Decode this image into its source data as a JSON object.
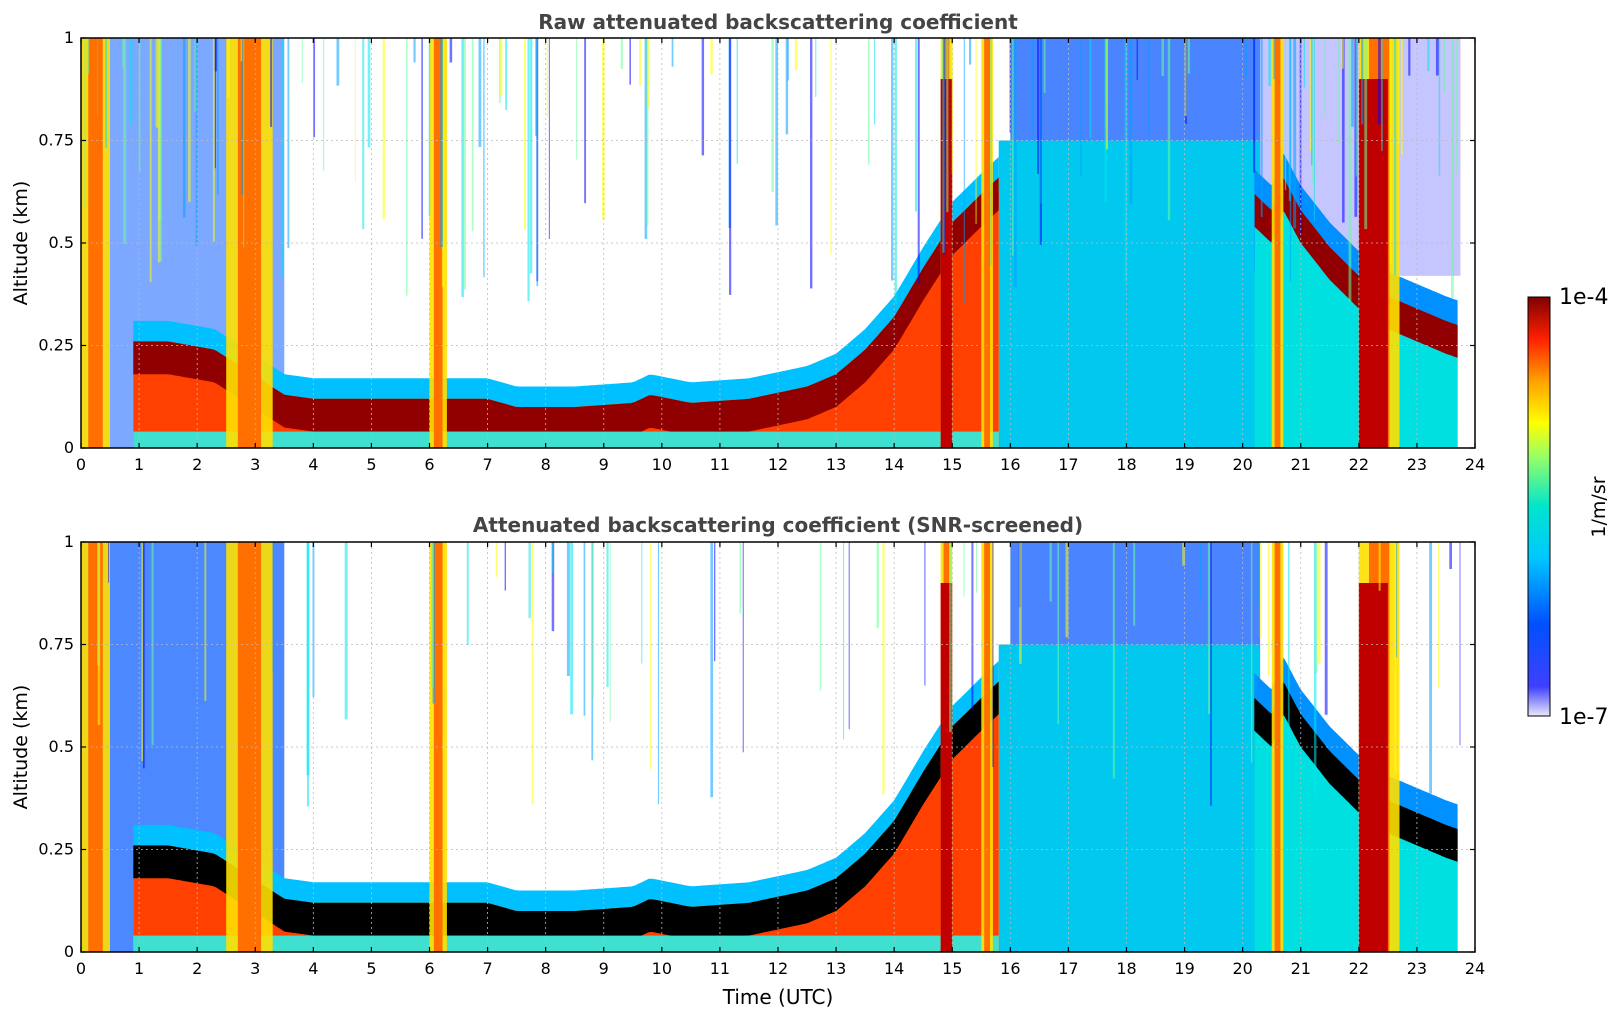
{
  "chart_data": [
    {
      "type": "heatmap",
      "title": "Raw attenuated backscattering coefficient",
      "xlabel": "",
      "ylabel": "Altitude (km)",
      "xlim": [
        0,
        24
      ],
      "ylim": [
        0,
        1
      ],
      "x_ticks": [
        "0",
        "1",
        "2",
        "3",
        "4",
        "5",
        "6",
        "7",
        "8",
        "9",
        "10",
        "11",
        "12",
        "13",
        "14",
        "15",
        "16",
        "17",
        "18",
        "19",
        "20",
        "21",
        "22",
        "23",
        "24"
      ],
      "y_ticks": [
        "0",
        "0.25",
        "0.5",
        "0.75",
        "1"
      ],
      "grid": true,
      "screened": false,
      "features": {
        "boundary_layer_top_km": {
          "x": [
            0.9,
            1.5,
            2.3,
            3.5,
            4.0,
            5.0,
            6.0,
            7.0,
            7.5,
            8.5,
            9.5,
            9.8,
            10.5,
            11.5,
            12.5,
            13.0,
            13.5,
            14.0,
            14.5,
            15.0,
            15.5,
            15.8
          ],
          "y": [
            0.26,
            0.26,
            0.24,
            0.13,
            0.12,
            0.12,
            0.12,
            0.12,
            0.1,
            0.1,
            0.11,
            0.13,
            0.11,
            0.12,
            0.15,
            0.18,
            0.24,
            0.32,
            0.44,
            0.55,
            0.62,
            0.66
          ]
        },
        "evening_layer_top_km": {
          "x": [
            20.2,
            20.5,
            20.7,
            21.0,
            21.5,
            22.0,
            22.5,
            23.0,
            23.5,
            23.7
          ],
          "y": [
            0.62,
            0.58,
            0.66,
            0.58,
            0.49,
            0.42,
            0.37,
            0.34,
            0.31,
            0.3
          ]
        },
        "precipitation_columns_utc": [
          [
            0.0,
            0.5
          ],
          [
            2.5,
            3.3
          ],
          [
            6.0,
            6.3
          ],
          [
            14.8,
            15.0
          ],
          [
            15.5,
            15.7
          ],
          [
            20.5,
            20.7
          ],
          [
            22.0,
            22.7
          ]
        ],
        "no_data_after_utc": 23.75
      }
    },
    {
      "type": "heatmap",
      "title": "Attenuated backscattering coefficient (SNR-screened)",
      "xlabel": "Time (UTC)",
      "ylabel": "Altitude (km)",
      "xlim": [
        0,
        24
      ],
      "ylim": [
        0,
        1
      ],
      "x_ticks": [
        "0",
        "1",
        "2",
        "3",
        "4",
        "5",
        "6",
        "7",
        "8",
        "9",
        "10",
        "11",
        "12",
        "13",
        "14",
        "15",
        "16",
        "17",
        "18",
        "19",
        "20",
        "21",
        "22",
        "23",
        "24"
      ],
      "y_ticks": [
        "0",
        "0.25",
        "0.5",
        "0.75",
        "1"
      ],
      "grid": true,
      "screened": true,
      "saturated_color": "#000000"
    }
  ],
  "colorbar": {
    "max_label": "1e-4",
    "min_label": "1e-7",
    "label": "1/m/sr",
    "colors": [
      "#e8e8fa",
      "#0000ff",
      "#00a0ff",
      "#00e5ee",
      "#66ff99",
      "#ffff00",
      "#ffa000",
      "#ff2000",
      "#800000"
    ]
  }
}
